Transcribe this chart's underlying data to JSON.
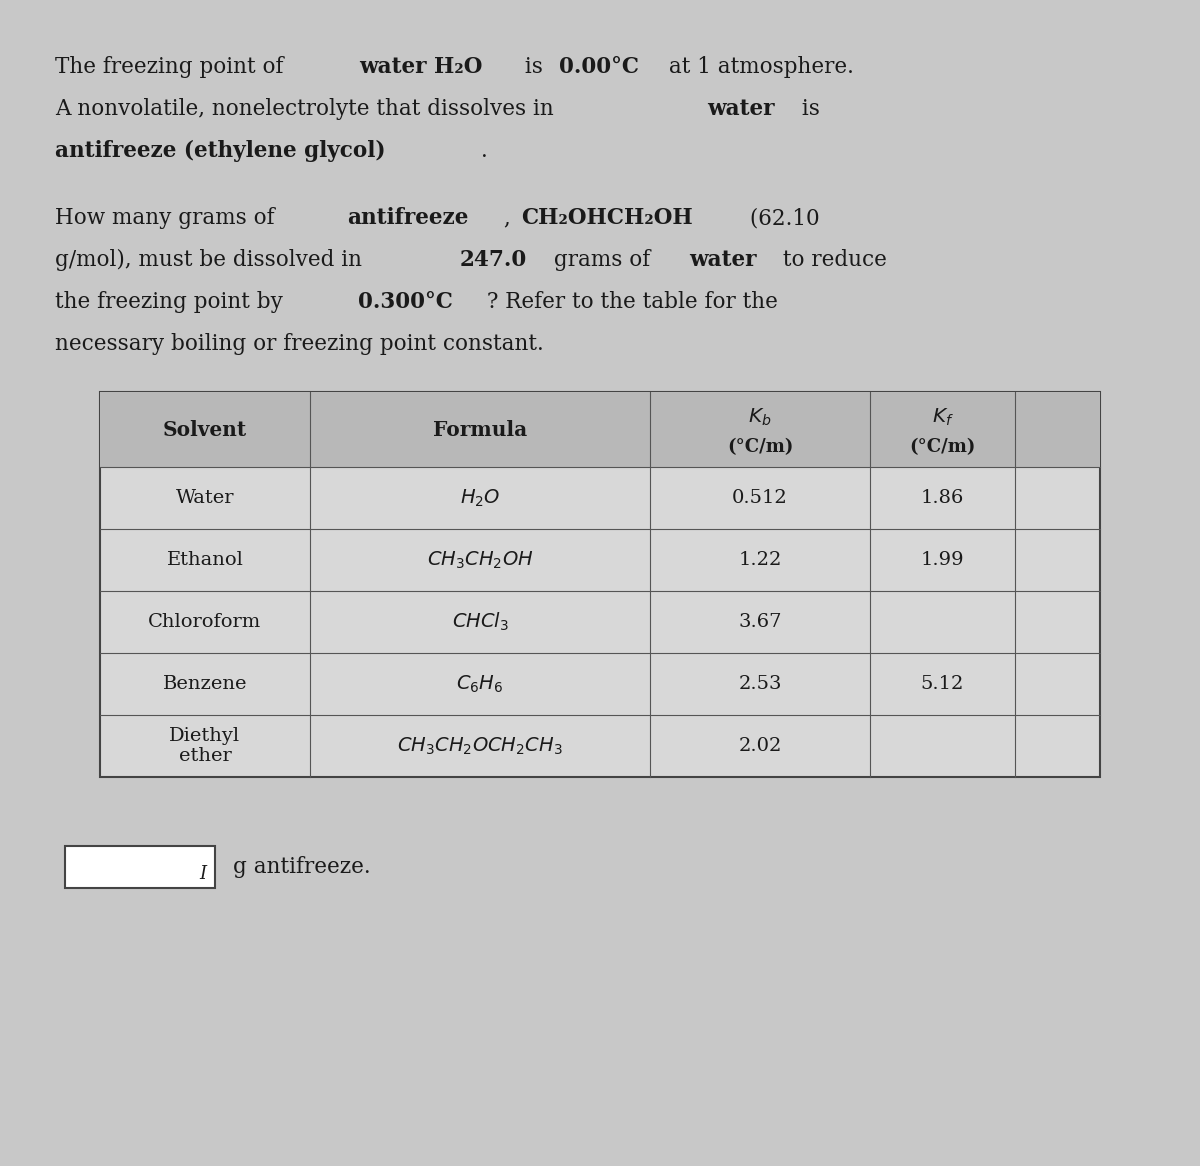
{
  "bg_color": "#c8c8c8",
  "text_color": "#1a1a1a",
  "intro_lines": [
    "The freezing point of **water H₂O** is **0.00°C** at 1 atmosphere.",
    "A nonvolatile, nonelectrolyte that dissolves in **water** is",
    "**antifreeze (ethylene glycol)**."
  ],
  "question_lines": [
    "How many grams of **antifreeze**, **CH₂OHCH₂OH** (62.10",
    "g/mol), must be dissolved in **247.0** grams of **water** to reduce",
    "the freezing point by **0.300°C** ? Refer to the table for the",
    "necessary boiling or freezing point constant."
  ],
  "table": {
    "headers": [
      "Solvent",
      "Formula",
      "K_b\n(°C/m)",
      "K_f\n(°C/m)"
    ],
    "rows": [
      [
        "Water",
        "H₂O",
        "0.512",
        "1.86"
      ],
      [
        "Ethanol",
        "CH₃CH₂OH",
        "1.22",
        "1.99"
      ],
      [
        "Chloroform",
        "CHCl₃",
        "3.67",
        ""
      ],
      [
        "Benzene",
        "C₆H₆",
        "2.53",
        "5.12"
      ],
      [
        "Diethyl\nether",
        "CH₃CH₂OCH₂CH₃",
        "2.02",
        ""
      ]
    ]
  },
  "answer_label": "g antifreeze.",
  "table_bg": "#d8d8d8",
  "table_header_bg": "#b8b8b8",
  "input_box_color": "#ffffff"
}
